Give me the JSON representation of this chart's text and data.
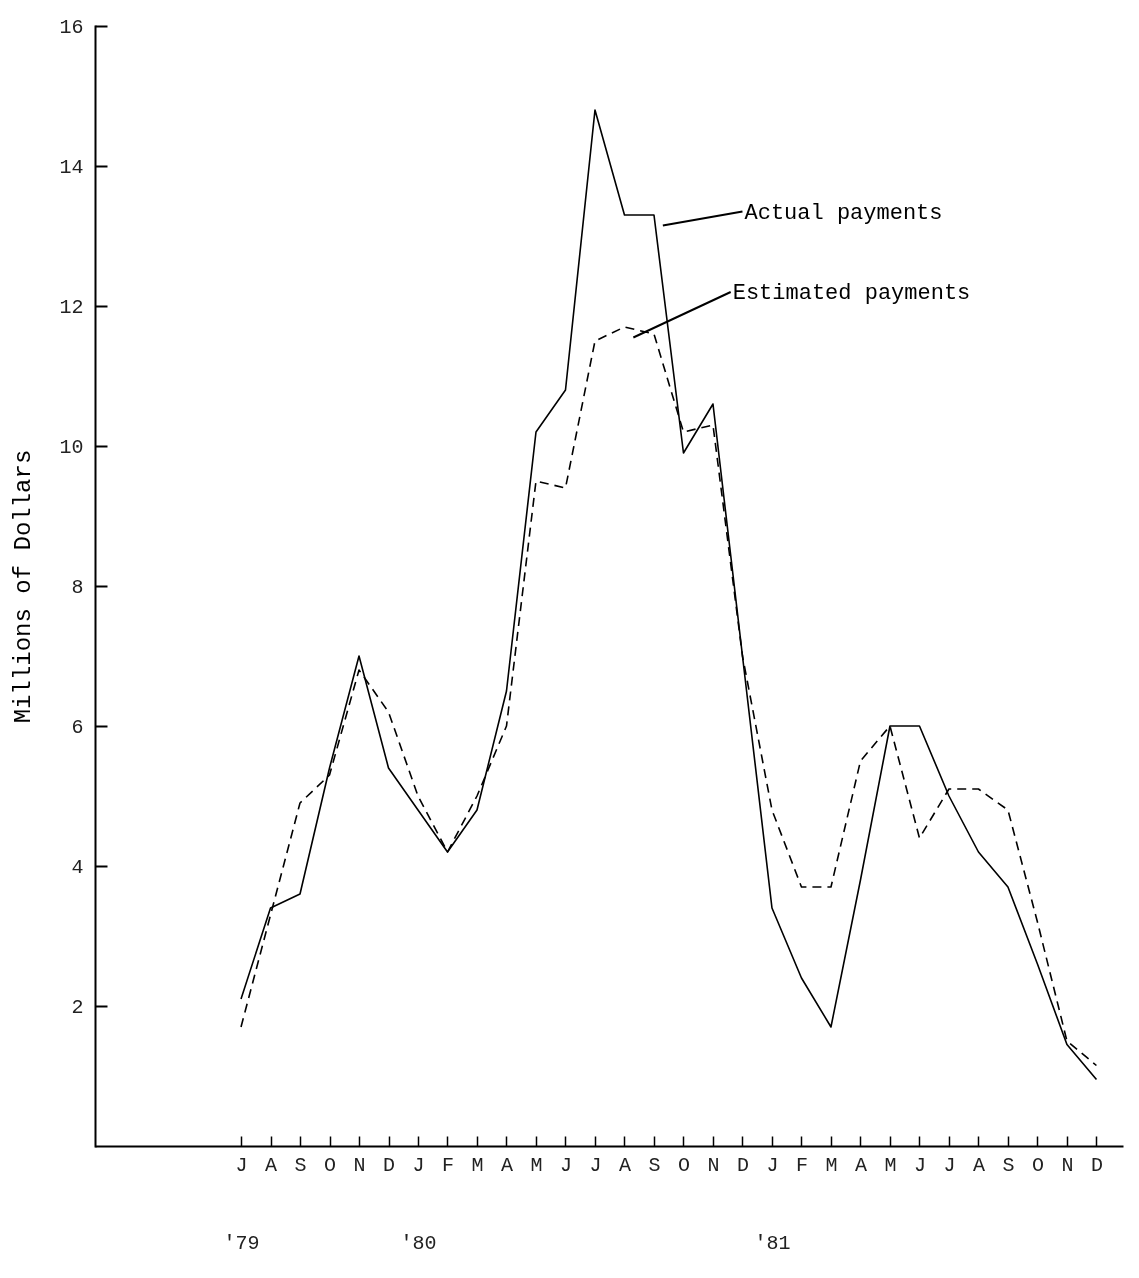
{
  "chart_data": {
    "type": "line",
    "ylabel": "Millions of Dollars",
    "categories": [
      "J\n'79",
      "A",
      "S",
      "O",
      "N",
      "D",
      "J\n'80",
      "F",
      "M",
      "A",
      "M",
      "J",
      "J",
      "A",
      "S",
      "O",
      "N",
      "D",
      "J\n'81",
      "F",
      "M",
      "A",
      "M",
      "J",
      "J",
      "A",
      "S",
      "O",
      "N",
      "D"
    ],
    "series": [
      {
        "name": "Actual payments",
        "color": "#000000",
        "line_style": "solid",
        "values": [
          2.1,
          3.4,
          3.6,
          5.4,
          7.0,
          5.4,
          4.8,
          4.2,
          4.8,
          6.5,
          10.2,
          10.8,
          14.8,
          13.3,
          13.3,
          9.9,
          10.6,
          7.0,
          3.4,
          2.4,
          1.7,
          3.8,
          6.0,
          6.0,
          5.0,
          4.2,
          3.7,
          2.6,
          1.45,
          0.95
        ]
      },
      {
        "name": "Estimated payments",
        "color": "#000000",
        "line_style": "dashed",
        "values": [
          1.7,
          3.3,
          4.9,
          5.3,
          6.8,
          6.2,
          5.0,
          4.2,
          5.0,
          6.0,
          9.5,
          9.4,
          11.5,
          11.7,
          11.6,
          10.2,
          10.3,
          7.0,
          4.8,
          3.7,
          3.7,
          5.5,
          6.0,
          4.4,
          5.1,
          5.1,
          4.8,
          3.2,
          1.5,
          1.15
        ]
      }
    ],
    "ylim": [
      0,
      16
    ],
    "yticks": [
      2,
      4,
      6,
      8,
      10,
      12,
      14,
      16
    ],
    "grid": false
  }
}
